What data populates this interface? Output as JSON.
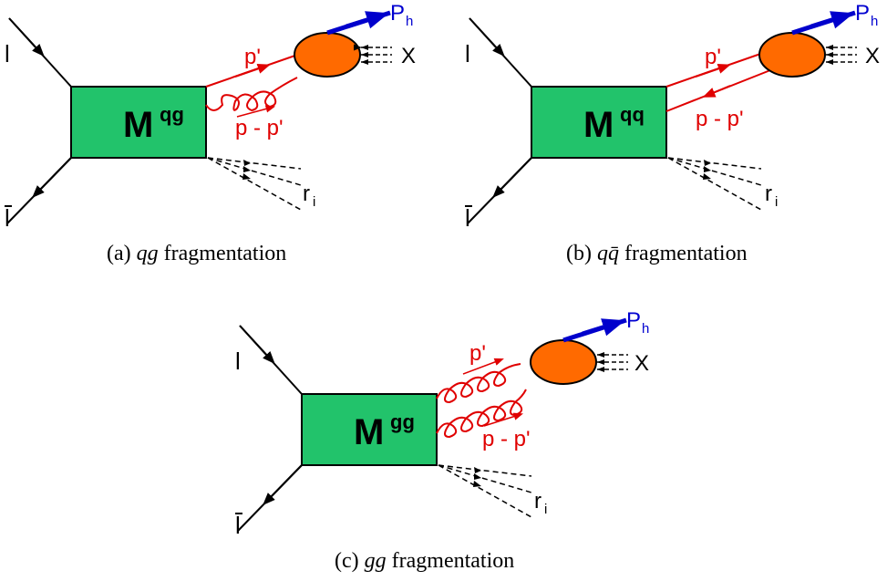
{
  "colors": {
    "box_fill": "#22c36b",
    "blob_fill": "#ff6a00",
    "parton_line": "#e00000",
    "hadron_line": "#0000cc",
    "lepton_line": "#000000"
  },
  "panels": [
    {
      "id": "a",
      "box_label_main": "M",
      "box_label_sup": "qg",
      "lepton_in": "l",
      "lepton_out": "l",
      "hadron": "P",
      "hadron_sub": "h",
      "remnant": "X",
      "momentum_top": "p'",
      "momentum_bottom": "p - p'",
      "recoil": "r",
      "recoil_sub": "i",
      "caption_prefix": "(a) ",
      "caption_italic": "qg",
      "caption_suffix": " fragmentation"
    },
    {
      "id": "b",
      "box_label_main": "M",
      "box_label_sup": "qq",
      "lepton_in": "l",
      "lepton_out": "l",
      "hadron": "P",
      "hadron_sub": "h",
      "remnant": "X",
      "momentum_top": "p'",
      "momentum_bottom": "p - p'",
      "recoil": "r",
      "recoil_sub": "i",
      "caption_prefix": "(b) ",
      "caption_italic": "qq̄",
      "caption_suffix": " fragmentation"
    },
    {
      "id": "c",
      "box_label_main": "M",
      "box_label_sup": "gg",
      "lepton_in": "l",
      "lepton_out": "l",
      "hadron": "P",
      "hadron_sub": "h",
      "remnant": "X",
      "momentum_top": "p'",
      "momentum_bottom": "p - p'",
      "recoil": "r",
      "recoil_sub": "i",
      "caption_prefix": "(c) ",
      "caption_italic": "gg",
      "caption_suffix": " fragmentation"
    }
  ]
}
